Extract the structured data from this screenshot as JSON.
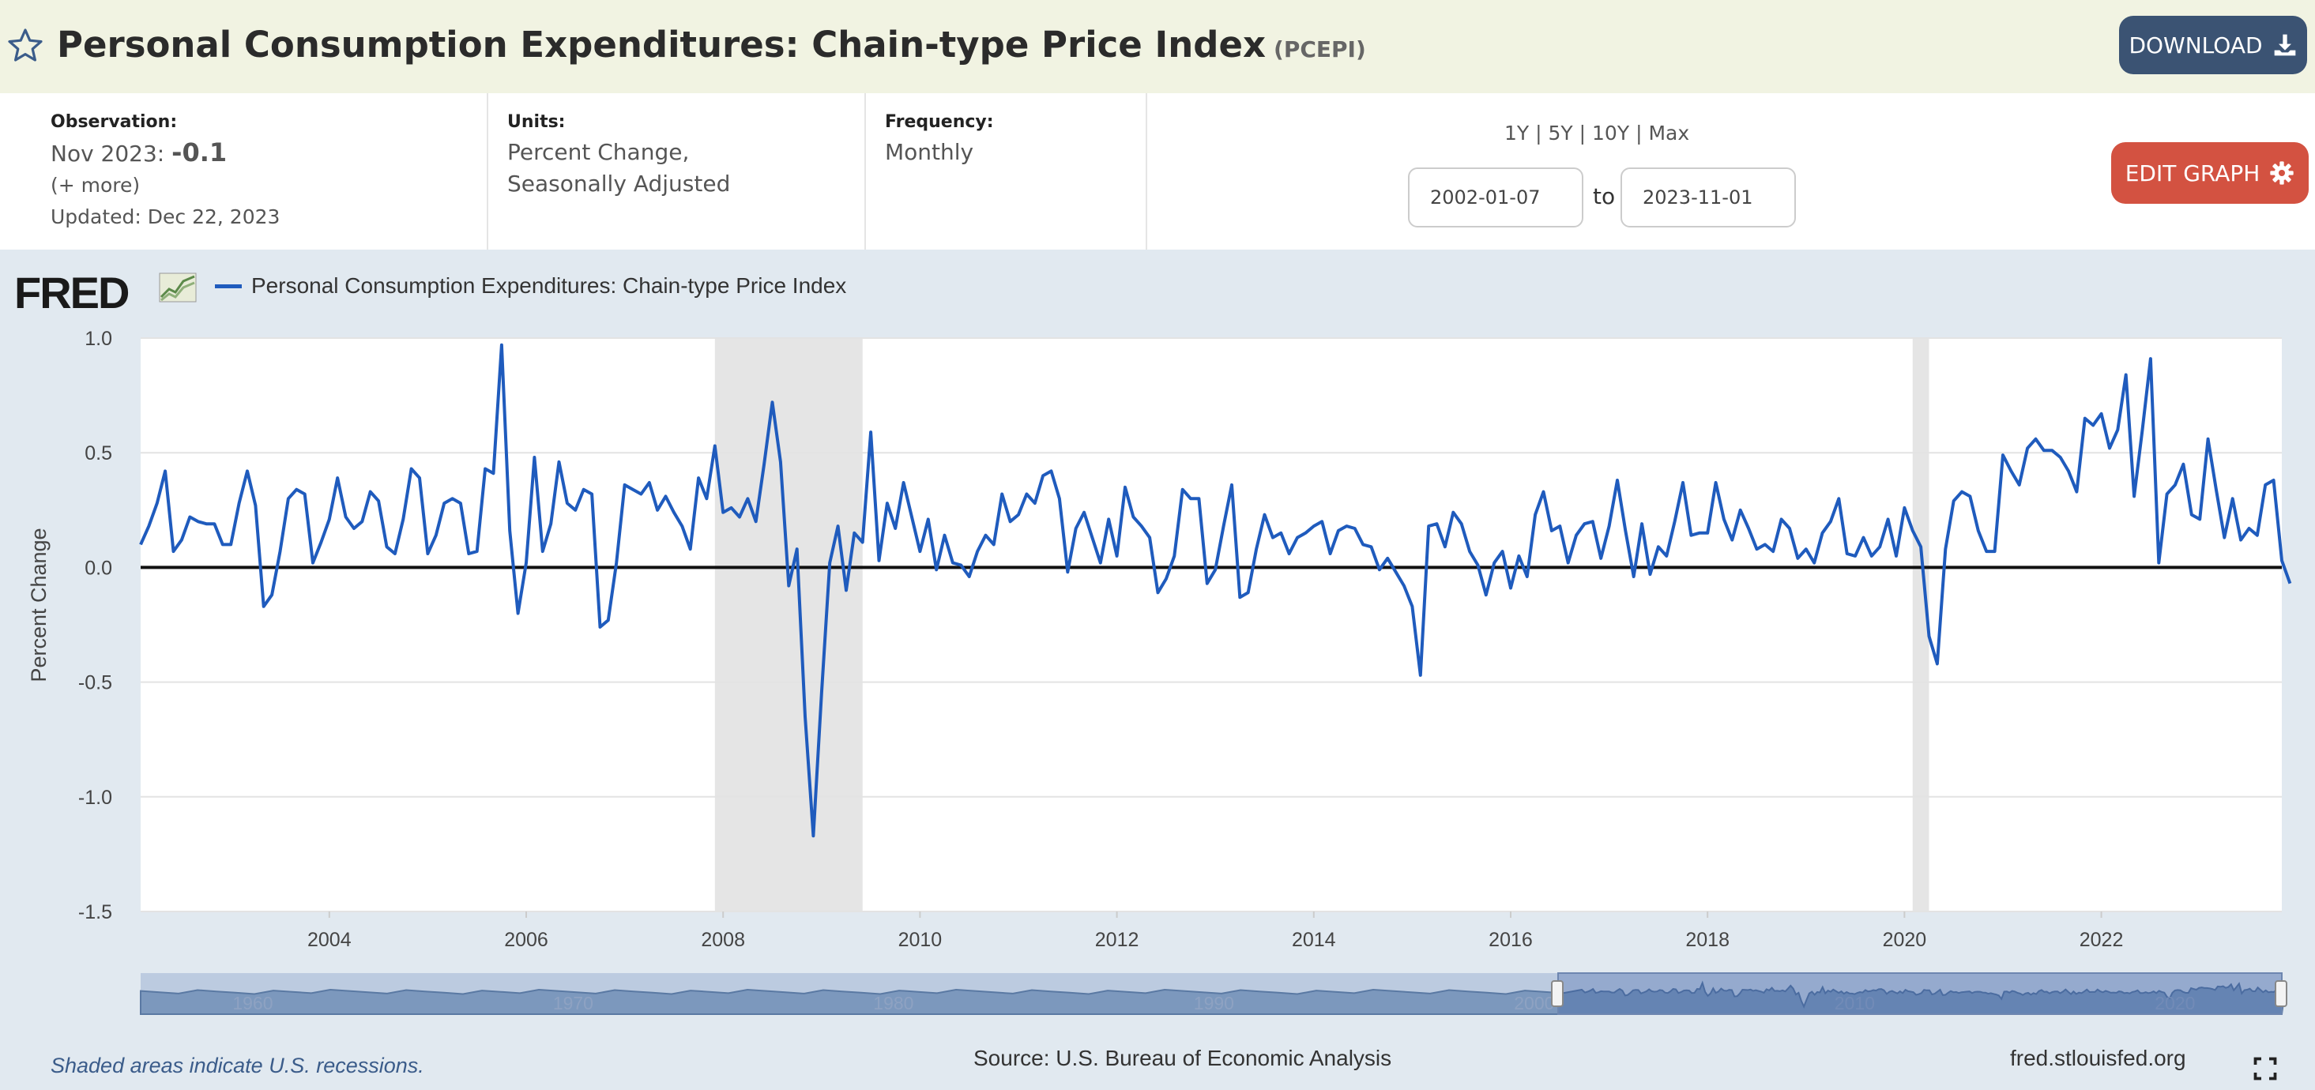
{
  "header": {
    "title": "Personal Consumption Expenditures: Chain-type Price Index",
    "series_id": "(PCEPI)",
    "download_label": "DOWNLOAD"
  },
  "info": {
    "observation_label": "Observation:",
    "observation_date": "Nov 2023:",
    "observation_value": "-0.1",
    "more_link": "(+ more)",
    "updated": "Updated: Dec 22, 2023",
    "units_label": "Units:",
    "units_line1": "Percent Change,",
    "units_line2": "Seasonally Adjusted",
    "frequency_label": "Frequency:",
    "frequency_value": "Monthly"
  },
  "range": {
    "links": [
      "1Y",
      "5Y",
      "10Y",
      "Max"
    ],
    "separator": " | ",
    "from": "2002-01-07",
    "to_label": "to",
    "to": "2023-11-01"
  },
  "edit_label": "EDIT GRAPH",
  "logo_text": "FRED",
  "legend_label": "Personal Consumption Expenditures: Chain-type Price Index",
  "footer": {
    "shade_note": "Shaded areas indicate U.S. recessions.",
    "source": "Source: U.S. Bureau of Economic Analysis",
    "url": "fred.stlouisfed.org"
  },
  "colors": {
    "line": "#1f5bbd",
    "recession": "#e5e5e5",
    "title_bg": "#f1f3e2",
    "download_bg": "#3b5373",
    "edit_bg": "#d35241"
  },
  "navigator": {
    "tick_labels": [
      "1960",
      "1970",
      "1980",
      "1990",
      "2000",
      "2010",
      "2020"
    ]
  },
  "chart_data": {
    "type": "line",
    "title": "",
    "xlabel": "",
    "ylabel": "Percent Change",
    "xlim": [
      "2002-02",
      "2023-11"
    ],
    "ylim": [
      -1.5,
      1.0
    ],
    "yticks": [
      1.0,
      0.5,
      0.0,
      -0.5,
      -1.0,
      -1.5
    ],
    "ytick_labels": [
      "1.0",
      "0.5",
      "0.0",
      "-0.5",
      "-1.0",
      "-1.5"
    ],
    "xticks": [
      "2004",
      "2006",
      "2008",
      "2010",
      "2012",
      "2014",
      "2016",
      "2018",
      "2020",
      "2022"
    ],
    "grid": true,
    "legend_position": "top-left",
    "recessions": [
      [
        "2007-12",
        "2009-06"
      ],
      [
        "2020-02",
        "2020-04"
      ]
    ],
    "series": [
      {
        "name": "Personal Consumption Expenditures: Chain-type Price Index",
        "start": "2002-02",
        "frequency": "monthly",
        "values": [
          0.1,
          0.18,
          0.28,
          0.42,
          0.07,
          0.12,
          0.22,
          0.2,
          0.19,
          0.19,
          0.1,
          0.1,
          0.28,
          0.42,
          0.27,
          -0.17,
          -0.12,
          0.07,
          0.3,
          0.34,
          0.32,
          0.02,
          0.11,
          0.21,
          0.39,
          0.22,
          0.17,
          0.2,
          0.33,
          0.29,
          0.09,
          0.06,
          0.21,
          0.43,
          0.39,
          0.06,
          0.14,
          0.28,
          0.3,
          0.28,
          0.06,
          0.07,
          0.43,
          0.41,
          0.97,
          0.16,
          -0.2,
          0.02,
          0.48,
          0.07,
          0.19,
          0.46,
          0.28,
          0.25,
          0.34,
          0.32,
          -0.26,
          -0.23,
          0.02,
          0.36,
          0.34,
          0.32,
          0.37,
          0.25,
          0.31,
          0.24,
          0.18,
          0.08,
          0.39,
          0.3,
          0.53,
          0.24,
          0.26,
          0.22,
          0.3,
          0.2,
          0.45,
          0.72,
          0.46,
          -0.08,
          0.08,
          -0.65,
          -1.17,
          -0.55,
          0.02,
          0.18,
          -0.1,
          0.15,
          0.11,
          0.59,
          0.03,
          0.28,
          0.17,
          0.37,
          0.22,
          0.07,
          0.21,
          -0.01,
          0.14,
          0.02,
          0.01,
          -0.04,
          0.07,
          0.14,
          0.1,
          0.32,
          0.2,
          0.23,
          0.32,
          0.28,
          0.4,
          0.42,
          0.3,
          -0.02,
          0.17,
          0.24,
          0.13,
          0.02,
          0.21,
          0.05,
          0.35,
          0.22,
          0.18,
          0.13,
          -0.11,
          -0.05,
          0.05,
          0.34,
          0.3,
          0.3,
          -0.07,
          -0.01,
          0.18,
          0.36,
          -0.13,
          -0.11,
          0.08,
          0.23,
          0.13,
          0.15,
          0.06,
          0.13,
          0.15,
          0.18,
          0.2,
          0.06,
          0.16,
          0.18,
          0.17,
          0.1,
          0.09,
          -0.01,
          0.04,
          -0.02,
          -0.08,
          -0.17,
          -0.47,
          0.18,
          0.19,
          0.09,
          0.24,
          0.19,
          0.07,
          0.01,
          -0.12,
          0.02,
          0.07,
          -0.09,
          0.05,
          -0.04,
          0.23,
          0.33,
          0.16,
          0.18,
          0.02,
          0.14,
          0.19,
          0.2,
          0.04,
          0.18,
          0.38,
          0.16,
          -0.04,
          0.19,
          -0.03,
          0.09,
          0.05,
          0.2,
          0.37,
          0.14,
          0.15,
          0.15,
          0.37,
          0.21,
          0.12,
          0.25,
          0.17,
          0.08,
          0.1,
          0.07,
          0.21,
          0.17,
          0.04,
          0.08,
          0.02,
          0.15,
          0.2,
          0.3,
          0.06,
          0.05,
          0.13,
          0.05,
          0.09,
          0.21,
          0.05,
          0.26,
          0.16,
          0.09,
          -0.3,
          -0.42,
          0.08,
          0.29,
          0.33,
          0.31,
          0.16,
          0.07,
          0.07,
          0.49,
          0.42,
          0.36,
          0.52,
          0.56,
          0.51,
          0.51,
          0.48,
          0.42,
          0.33,
          0.65,
          0.62,
          0.67,
          0.52,
          0.6,
          0.84,
          0.31,
          0.6,
          0.91,
          0.02,
          0.32,
          0.36,
          0.45,
          0.23,
          0.21,
          0.56,
          0.34,
          0.13,
          0.3,
          0.12,
          0.17,
          0.14,
          0.36,
          0.38,
          0.03,
          -0.07
        ]
      }
    ]
  }
}
